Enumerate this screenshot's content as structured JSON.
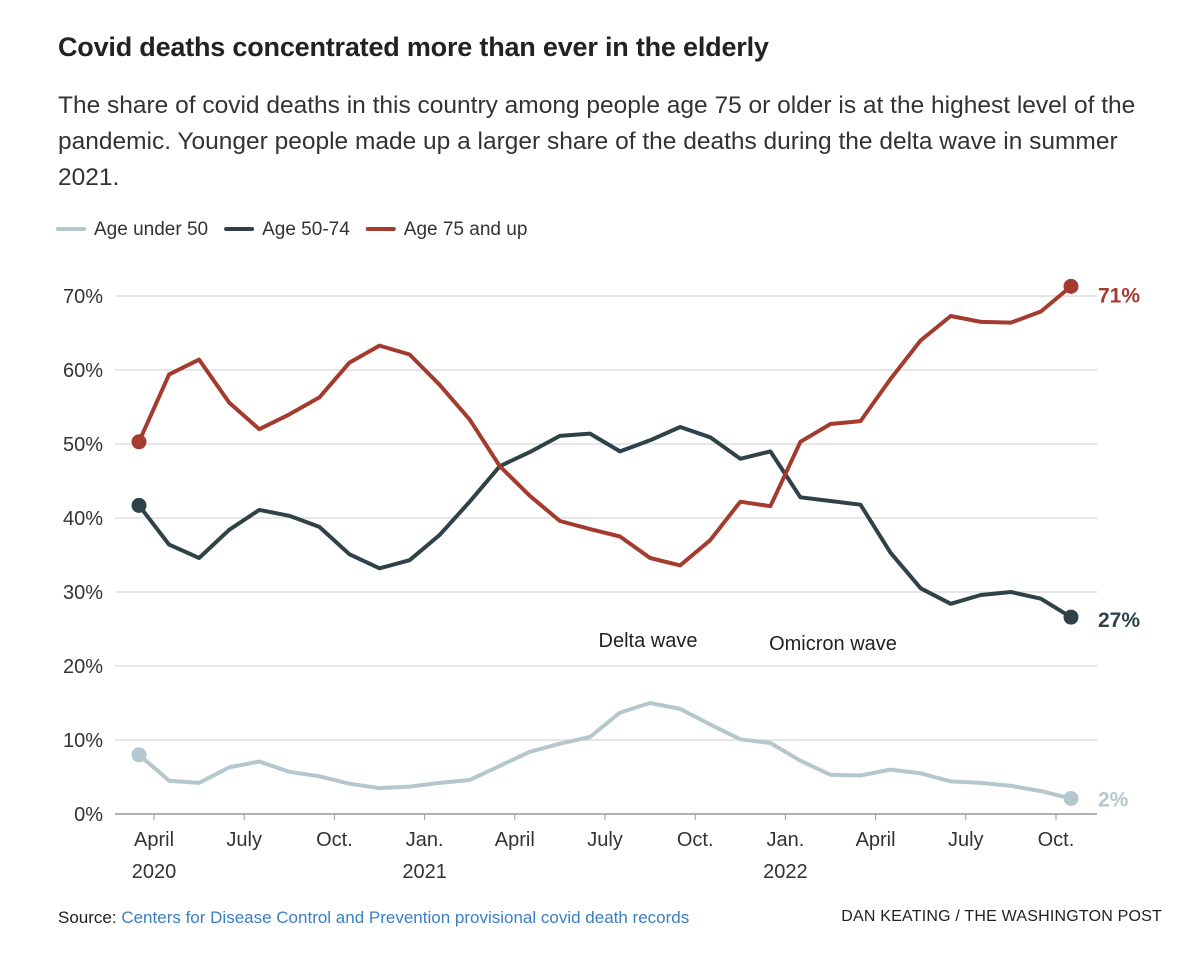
{
  "chart_data": {
    "type": "line",
    "title": "Covid deaths concentrated more than ever in the elderly",
    "subtitle": "The share of covid deaths in this country among people age 75 or older is at the highest level of the pandemic. Younger people made up a larger share of the deaths during the delta wave in summer 2021.",
    "x": [
      "2020-03",
      "2020-04",
      "2020-05",
      "2020-06",
      "2020-07",
      "2020-08",
      "2020-09",
      "2020-10",
      "2020-11",
      "2020-12",
      "2021-01",
      "2021-02",
      "2021-03",
      "2021-04",
      "2021-05",
      "2021-06",
      "2021-07",
      "2021-08",
      "2021-09",
      "2021-10",
      "2021-11",
      "2021-12",
      "2022-01",
      "2022-02",
      "2022-03",
      "2022-04",
      "2022-05",
      "2022-06",
      "2022-07",
      "2022-08",
      "2022-09",
      "2022-10"
    ],
    "xlim": [
      "2020-03",
      "2022-10"
    ],
    "xticks": [
      {
        "value": "2020-04",
        "label": [
          "April",
          "2020"
        ]
      },
      {
        "value": "2020-07",
        "label": [
          "July"
        ]
      },
      {
        "value": "2020-10",
        "label": [
          "Oct."
        ]
      },
      {
        "value": "2021-01",
        "label": [
          "Jan.",
          "2021"
        ]
      },
      {
        "value": "2021-04",
        "label": [
          "April"
        ]
      },
      {
        "value": "2021-07",
        "label": [
          "July"
        ]
      },
      {
        "value": "2021-10",
        "label": [
          "Oct."
        ]
      },
      {
        "value": "2022-01",
        "label": [
          "Jan.",
          "2022"
        ]
      },
      {
        "value": "2022-04",
        "label": [
          "April"
        ]
      },
      {
        "value": "2022-07",
        "label": [
          "July"
        ]
      },
      {
        "value": "2022-10",
        "label": [
          "Oct."
        ]
      }
    ],
    "ylim": [
      0,
      70
    ],
    "yticks": [
      {
        "value": 0,
        "label": "0%"
      },
      {
        "value": 10,
        "label": "10%"
      },
      {
        "value": 20,
        "label": "20%"
      },
      {
        "value": 30,
        "label": "30%"
      },
      {
        "value": 40,
        "label": "40%"
      },
      {
        "value": 50,
        "label": "50%"
      },
      {
        "value": 60,
        "label": "60%"
      },
      {
        "value": 70,
        "label": "70%"
      }
    ],
    "grid": true,
    "series": [
      {
        "name": "Age under 50",
        "color": "#b4c7cd",
        "values": [
          8,
          4.5,
          4.2,
          6.3,
          7.1,
          5.7,
          5.1,
          4.1,
          3.5,
          3.7,
          4.2,
          4.6,
          6.5,
          8.4,
          9.5,
          10.4,
          13.7,
          15,
          14.2,
          12.1,
          10.1,
          9.6,
          7.2,
          5.3,
          5.2,
          6,
          5.5,
          4.4,
          4.2,
          3.8,
          3.1,
          2.1
        ],
        "value_labels": [
          null,
          null,
          null,
          null,
          null,
          null,
          null,
          null,
          null,
          null,
          null,
          null,
          null,
          null,
          null,
          null,
          null,
          null,
          null,
          null,
          null,
          null,
          null,
          null,
          null,
          null,
          null,
          null,
          null,
          null,
          null,
          "2%"
        ]
      },
      {
        "name": "Age 50-74",
        "color": "#2f4248",
        "values": [
          41.7,
          36.4,
          34.6,
          38.4,
          41.1,
          40.3,
          38.8,
          35.1,
          33.2,
          34.3,
          37.7,
          42.2,
          47,
          48.9,
          51.1,
          51.4,
          49,
          50.5,
          52.3,
          50.9,
          48,
          49,
          42.8,
          42.3,
          41.8,
          35.3,
          30.5,
          28.4,
          29.6,
          30,
          29.1,
          26.6
        ],
        "value_labels": [
          null,
          null,
          null,
          null,
          null,
          null,
          null,
          null,
          null,
          null,
          null,
          null,
          null,
          null,
          null,
          null,
          null,
          null,
          null,
          null,
          null,
          null,
          null,
          null,
          null,
          null,
          null,
          null,
          null,
          null,
          null,
          "27%"
        ]
      },
      {
        "name": "Age 75 and up",
        "color": "#a33b2e",
        "values": [
          50.3,
          59.4,
          61.4,
          55.6,
          52,
          54,
          56.3,
          61,
          63.3,
          62.1,
          58,
          53.3,
          47,
          43,
          39.6,
          38.5,
          37.5,
          34.6,
          33.6,
          37,
          42.2,
          41.6,
          50.3,
          52.7,
          53.1,
          58.8,
          64,
          67.3,
          66.5,
          66.4,
          67.9,
          71.3
        ],
        "value_labels": [
          null,
          null,
          null,
          null,
          null,
          null,
          null,
          null,
          null,
          null,
          null,
          null,
          null,
          null,
          null,
          null,
          null,
          null,
          null,
          null,
          null,
          null,
          null,
          null,
          null,
          null,
          null,
          null,
          null,
          null,
          null,
          "71%"
        ]
      }
    ],
    "annotations": [
      "Delta wave",
      "Omicron wave"
    ],
    "source_prefix": "Source:",
    "source": "Centers for Disease Control and Prevention provisional covid death records",
    "credit": "DAN KEATING / THE WASHINGTON POST"
  }
}
